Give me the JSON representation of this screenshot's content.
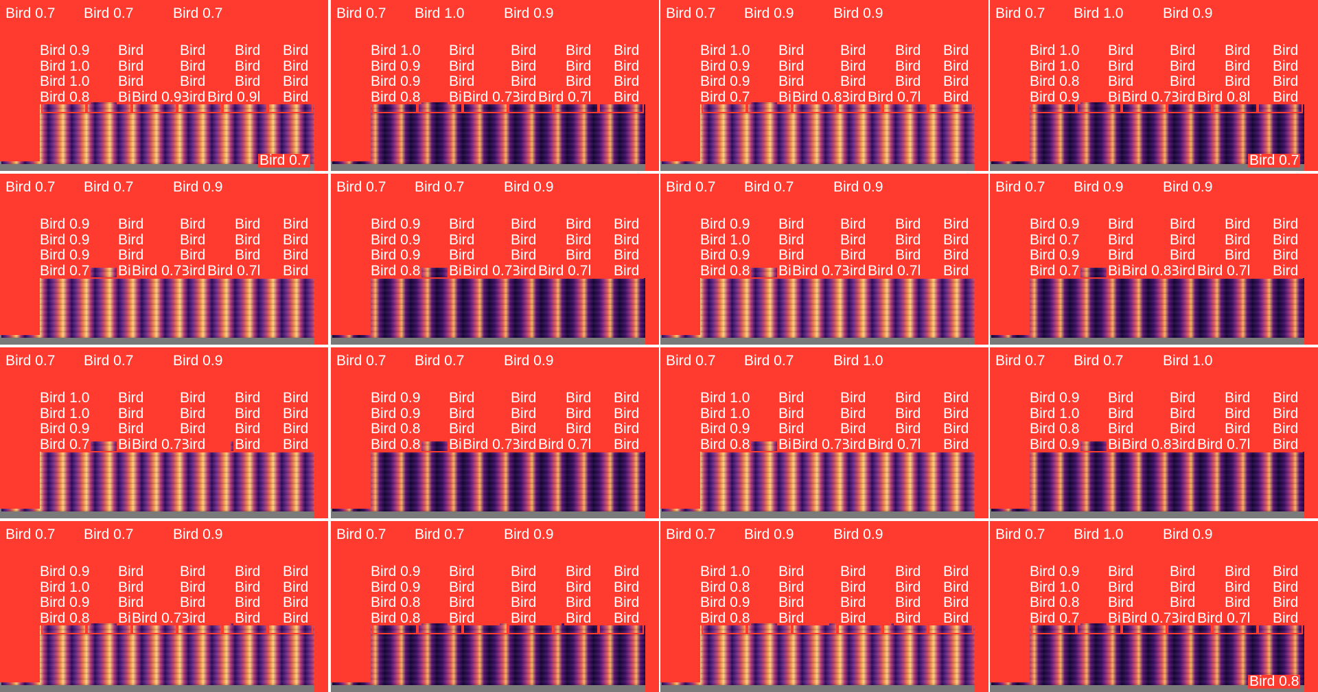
{
  "detection_label": "Bird",
  "colors": {
    "detection": "#ff3b30",
    "label_text": "#ffffff",
    "background": "#ffffff",
    "plot_frame": "#7a7a7a"
  },
  "tiles": [
    {
      "labels": [
        "Bird 0.7",
        "Bird 0.7",
        "Bird 0.7",
        "Bird 0.9",
        "Bird 1.0",
        "Bird 1.0",
        "Bird 0.8",
        "Bird 0.9",
        "Bird 0.9",
        "Bird 0.7"
      ]
    },
    {
      "labels": [
        "Bird 0.7",
        "Bird 1.0",
        "Bird 0.9",
        "Bird 1.0",
        "Bird 0.9",
        "Bird 0.9",
        "Bird 0.8",
        "Bird 0.7",
        "Bird 0.7"
      ]
    },
    {
      "labels": [
        "Bird 0.7",
        "Bird 0.9",
        "Bird 0.9",
        "Bird 1.0",
        "Bird 0.9",
        "Bird 0.9",
        "Bird 0.7",
        "Bird 0.8",
        "Bird 0.7"
      ]
    },
    {
      "labels": [
        "Bird 0.7",
        "Bird 1.0",
        "Bird 0.9",
        "Bird 1.0",
        "Bird 1.0",
        "Bird 0.8",
        "Bird 0.9",
        "Bird 0.7",
        "Bird 0.8",
        "Bird 0.7"
      ]
    },
    {
      "labels": [
        "Bird 0.7",
        "Bird 0.7",
        "Bird 0.9",
        "Bird 0.9",
        "Bird 0.9",
        "Bird 0.9",
        "Bird 0.7",
        "Bird 0.7",
        "Bird 0.7"
      ]
    },
    {
      "labels": [
        "Bird 0.7",
        "Bird 0.7",
        "Bird 0.9",
        "Bird 0.9",
        "Bird 0.9",
        "Bird 0.9",
        "Bird 0.8",
        "Bird 0.7",
        "Bird 0.7"
      ]
    },
    {
      "labels": [
        "Bird 0.7",
        "Bird 0.7",
        "Bird 0.9",
        "Bird 0.9",
        "Bird 1.0",
        "Bird 0.9",
        "Bird 0.8",
        "Bird 0.7",
        "Bird 0.7"
      ]
    },
    {
      "labels": [
        "Bird 0.7",
        "Bird 0.9",
        "Bird 0.9",
        "Bird 0.9",
        "Bird 0.7",
        "Bird 0.9",
        "Bird 0.7",
        "Bird 0.8",
        "Bird 0.7"
      ]
    },
    {
      "labels": [
        "Bird 0.7",
        "Bird 0.7",
        "Bird 0.9",
        "Bird 1.0",
        "Bird 1.0",
        "Bird 0.9",
        "Bird 0.7",
        "Bird 0.7"
      ]
    },
    {
      "labels": [
        "Bird 0.7",
        "Bird 0.7",
        "Bird 0.9",
        "Bird 0.9",
        "Bird 0.9",
        "Bird 0.8",
        "Bird 0.8",
        "Bird 0.7",
        "Bird 0.7"
      ]
    },
    {
      "labels": [
        "Bird 0.7",
        "Bird 0.7",
        "Bird 1.0",
        "Bird 1.0",
        "Bird 1.0",
        "Bird 0.9",
        "Bird 0.8",
        "Bird 0.7",
        "Bird 0.7"
      ]
    },
    {
      "labels": [
        "Bird 0.7",
        "Bird 0.7",
        "Bird 1.0",
        "Bird 0.9",
        "Bird 1.0",
        "Bird 0.8",
        "Bird 0.9",
        "Bird 0.8",
        "Bird 0.7"
      ]
    },
    {
      "labels": [
        "Bird 0.7",
        "Bird 0.7",
        "Bird 0.9",
        "Bird 0.9",
        "Bird 1.0",
        "Bird 0.9",
        "Bird 0.8",
        "Bird 0.7"
      ]
    },
    {
      "labels": [
        "Bird 0.7",
        "Bird 0.7",
        "Bird 0.9",
        "Bird 0.9",
        "Bird 0.9",
        "Bird 0.8",
        "Bird 0.8"
      ]
    },
    {
      "labels": [
        "Bird 0.7",
        "Bird 0.9",
        "Bird 0.9",
        "Bird 1.0",
        "Bird 0.8",
        "Bird 0.9",
        "Bird 0.8"
      ]
    },
    {
      "labels": [
        "Bird 0.7",
        "Bird 1.0",
        "Bird 0.9",
        "Bird 0.9",
        "Bird 1.0",
        "Bird 0.8",
        "Bird 0.7",
        "Bird 0.7",
        "Bird 0.7",
        "Bird 0.8"
      ]
    }
  ]
}
